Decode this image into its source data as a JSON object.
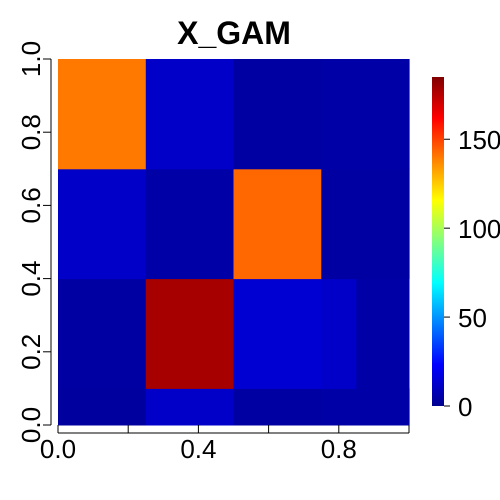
{
  "chart_data": {
    "type": "heatmap",
    "title": "X_GAM",
    "xlabel": "",
    "ylabel": "",
    "xlim": [
      0,
      1
    ],
    "ylim": [
      0,
      1
    ],
    "x_ticks": [
      0.0,
      0.4,
      0.8
    ],
    "x_tick_labels": [
      "0.0",
      "0.4",
      "0.8"
    ],
    "y_ticks": [
      0.0,
      0.2,
      0.4,
      0.6,
      0.8,
      1.0
    ],
    "y_tick_labels": [
      "0.0",
      "0.2",
      "0.4",
      "0.6",
      "0.8",
      "1.0"
    ],
    "colorscale": [
      "#00008f",
      "#0000ff",
      "#0080ff",
      "#00ffff",
      "#80ff80",
      "#ffff00",
      "#ff8000",
      "#ff0000",
      "#800000"
    ],
    "value_range": [
      0,
      185
    ],
    "colorbar_ticks": [
      0,
      50,
      100,
      150
    ],
    "colorbar_tick_labels": [
      "0",
      "50",
      "100",
      "150"
    ],
    "blocks": [
      {
        "x": [
          0.0,
          0.25
        ],
        "y": [
          0.0,
          0.1
        ],
        "value": 3
      },
      {
        "x": [
          0.25,
          0.5
        ],
        "y": [
          0.0,
          0.1
        ],
        "value": 12
      },
      {
        "x": [
          0.5,
          0.75
        ],
        "y": [
          0.0,
          0.1
        ],
        "value": 4
      },
      {
        "x": [
          0.75,
          1.0
        ],
        "y": [
          0.0,
          0.1
        ],
        "value": 5
      },
      {
        "x": [
          0.0,
          0.25
        ],
        "y": [
          0.1,
          0.4
        ],
        "value": 4
      },
      {
        "x": [
          0.25,
          0.5
        ],
        "y": [
          0.1,
          0.4
        ],
        "value": 178
      },
      {
        "x": [
          0.5,
          0.75
        ],
        "y": [
          0.1,
          0.4
        ],
        "value": 14
      },
      {
        "x": [
          0.75,
          0.85
        ],
        "y": [
          0.1,
          0.4
        ],
        "value": 12
      },
      {
        "x": [
          0.85,
          1.0
        ],
        "y": [
          0.1,
          0.4
        ],
        "value": 5
      },
      {
        "x": [
          0.0,
          0.25
        ],
        "y": [
          0.4,
          0.7
        ],
        "value": 12
      },
      {
        "x": [
          0.25,
          0.5
        ],
        "y": [
          0.4,
          0.7
        ],
        "value": 5
      },
      {
        "x": [
          0.5,
          0.75
        ],
        "y": [
          0.4,
          0.7
        ],
        "value": 143
      },
      {
        "x": [
          0.75,
          1.0
        ],
        "y": [
          0.4,
          0.7
        ],
        "value": 4
      },
      {
        "x": [
          0.0,
          0.25
        ],
        "y": [
          0.7,
          1.0
        ],
        "value": 140
      },
      {
        "x": [
          0.25,
          0.5
        ],
        "y": [
          0.7,
          1.0
        ],
        "value": 12
      },
      {
        "x": [
          0.5,
          0.75
        ],
        "y": [
          0.7,
          1.0
        ],
        "value": 4
      },
      {
        "x": [
          0.75,
          1.0
        ],
        "y": [
          0.7,
          1.0
        ],
        "value": 5
      }
    ]
  }
}
